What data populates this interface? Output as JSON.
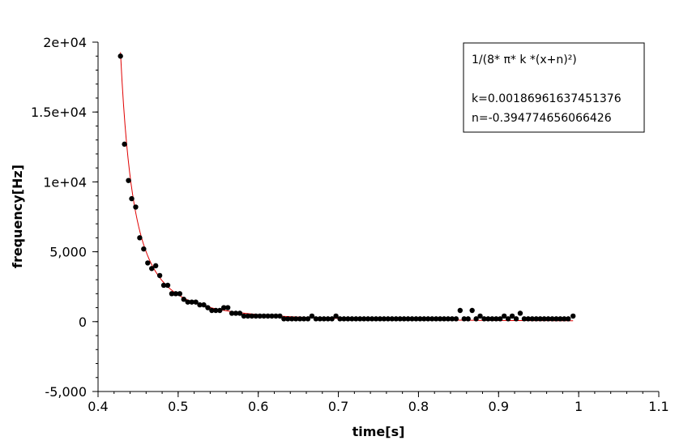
{
  "chart_data": {
    "type": "scatter",
    "xlabel": "time[s]",
    "ylabel": "frequency[Hz]",
    "xlim": [
      0.4,
      1.1
    ],
    "ylim": [
      -5000,
      20000
    ],
    "x_ticks": [
      0.4,
      0.5,
      0.6,
      0.7,
      0.8,
      0.9,
      1,
      1.1
    ],
    "x_tick_labels": [
      "0.4",
      "0.5",
      "0.6",
      "0.7",
      "0.8",
      "0.9",
      "1",
      "1.1"
    ],
    "y_ticks": [
      -5000,
      0,
      5000,
      10000,
      15000,
      20000
    ],
    "y_tick_labels": [
      "-5,000",
      "0",
      "5,000",
      "1e+04",
      "1.5e+04",
      "2e+04"
    ],
    "grid": false,
    "legend": {
      "placement": "top-right",
      "lines": [
        "1/(8* π* k *(x+n)²)",
        "",
        "k=0.00186961637451376",
        "n=-0.394774656066426"
      ]
    },
    "fit": {
      "formula": "1/(8*pi*k*(x+n)^2)",
      "k": 0.00186961637451376,
      "n": -0.394774656066426,
      "x_range": [
        0.428,
        0.993
      ],
      "color": "#e00000"
    },
    "series": [
      {
        "marker_color": "#000000",
        "points": [
          [
            0.428,
            19000
          ],
          [
            0.433,
            12700
          ],
          [
            0.438,
            10100
          ],
          [
            0.442,
            8800
          ],
          [
            0.447,
            8200
          ],
          [
            0.452,
            6000
          ],
          [
            0.457,
            5200
          ],
          [
            0.462,
            4200
          ],
          [
            0.467,
            3800
          ],
          [
            0.472,
            4000
          ],
          [
            0.477,
            3300
          ],
          [
            0.482,
            2600
          ],
          [
            0.487,
            2600
          ],
          [
            0.492,
            2000
          ],
          [
            0.497,
            2000
          ],
          [
            0.502,
            2000
          ],
          [
            0.507,
            1600
          ],
          [
            0.512,
            1400
          ],
          [
            0.517,
            1400
          ],
          [
            0.522,
            1400
          ],
          [
            0.527,
            1200
          ],
          [
            0.532,
            1200
          ],
          [
            0.537,
            1000
          ],
          [
            0.542,
            800
          ],
          [
            0.547,
            800
          ],
          [
            0.552,
            800
          ],
          [
            0.557,
            1000
          ],
          [
            0.562,
            1000
          ],
          [
            0.567,
            600
          ],
          [
            0.572,
            600
          ],
          [
            0.577,
            600
          ],
          [
            0.582,
            400
          ],
          [
            0.587,
            400
          ],
          [
            0.592,
            400
          ],
          [
            0.597,
            400
          ],
          [
            0.602,
            400
          ],
          [
            0.607,
            400
          ],
          [
            0.612,
            400
          ],
          [
            0.617,
            400
          ],
          [
            0.622,
            400
          ],
          [
            0.627,
            400
          ],
          [
            0.632,
            200
          ],
          [
            0.637,
            200
          ],
          [
            0.642,
            200
          ],
          [
            0.647,
            200
          ],
          [
            0.652,
            200
          ],
          [
            0.657,
            200
          ],
          [
            0.662,
            200
          ],
          [
            0.667,
            400
          ],
          [
            0.672,
            200
          ],
          [
            0.677,
            200
          ],
          [
            0.682,
            200
          ],
          [
            0.687,
            200
          ],
          [
            0.692,
            200
          ],
          [
            0.697,
            400
          ],
          [
            0.702,
            200
          ],
          [
            0.707,
            200
          ],
          [
            0.712,
            200
          ],
          [
            0.717,
            200
          ],
          [
            0.722,
            200
          ],
          [
            0.727,
            200
          ],
          [
            0.732,
            200
          ],
          [
            0.737,
            200
          ],
          [
            0.742,
            200
          ],
          [
            0.747,
            200
          ],
          [
            0.752,
            200
          ],
          [
            0.757,
            200
          ],
          [
            0.762,
            200
          ],
          [
            0.767,
            200
          ],
          [
            0.772,
            200
          ],
          [
            0.777,
            200
          ],
          [
            0.782,
            200
          ],
          [
            0.787,
            200
          ],
          [
            0.792,
            200
          ],
          [
            0.797,
            200
          ],
          [
            0.802,
            200
          ],
          [
            0.807,
            200
          ],
          [
            0.812,
            200
          ],
          [
            0.817,
            200
          ],
          [
            0.822,
            200
          ],
          [
            0.827,
            200
          ],
          [
            0.832,
            200
          ],
          [
            0.837,
            200
          ],
          [
            0.842,
            200
          ],
          [
            0.847,
            200
          ],
          [
            0.852,
            800
          ],
          [
            0.857,
            200
          ],
          [
            0.862,
            200
          ],
          [
            0.867,
            800
          ],
          [
            0.872,
            200
          ],
          [
            0.877,
            400
          ],
          [
            0.882,
            200
          ],
          [
            0.887,
            200
          ],
          [
            0.892,
            200
          ],
          [
            0.897,
            200
          ],
          [
            0.902,
            200
          ],
          [
            0.907,
            400
          ],
          [
            0.912,
            200
          ],
          [
            0.917,
            400
          ],
          [
            0.922,
            200
          ],
          [
            0.927,
            600
          ],
          [
            0.932,
            200
          ],
          [
            0.937,
            200
          ],
          [
            0.942,
            200
          ],
          [
            0.947,
            200
          ],
          [
            0.952,
            200
          ],
          [
            0.957,
            200
          ],
          [
            0.962,
            200
          ],
          [
            0.967,
            200
          ],
          [
            0.972,
            200
          ],
          [
            0.977,
            200
          ],
          [
            0.982,
            200
          ],
          [
            0.987,
            200
          ],
          [
            0.993,
            400
          ]
        ]
      }
    ]
  }
}
